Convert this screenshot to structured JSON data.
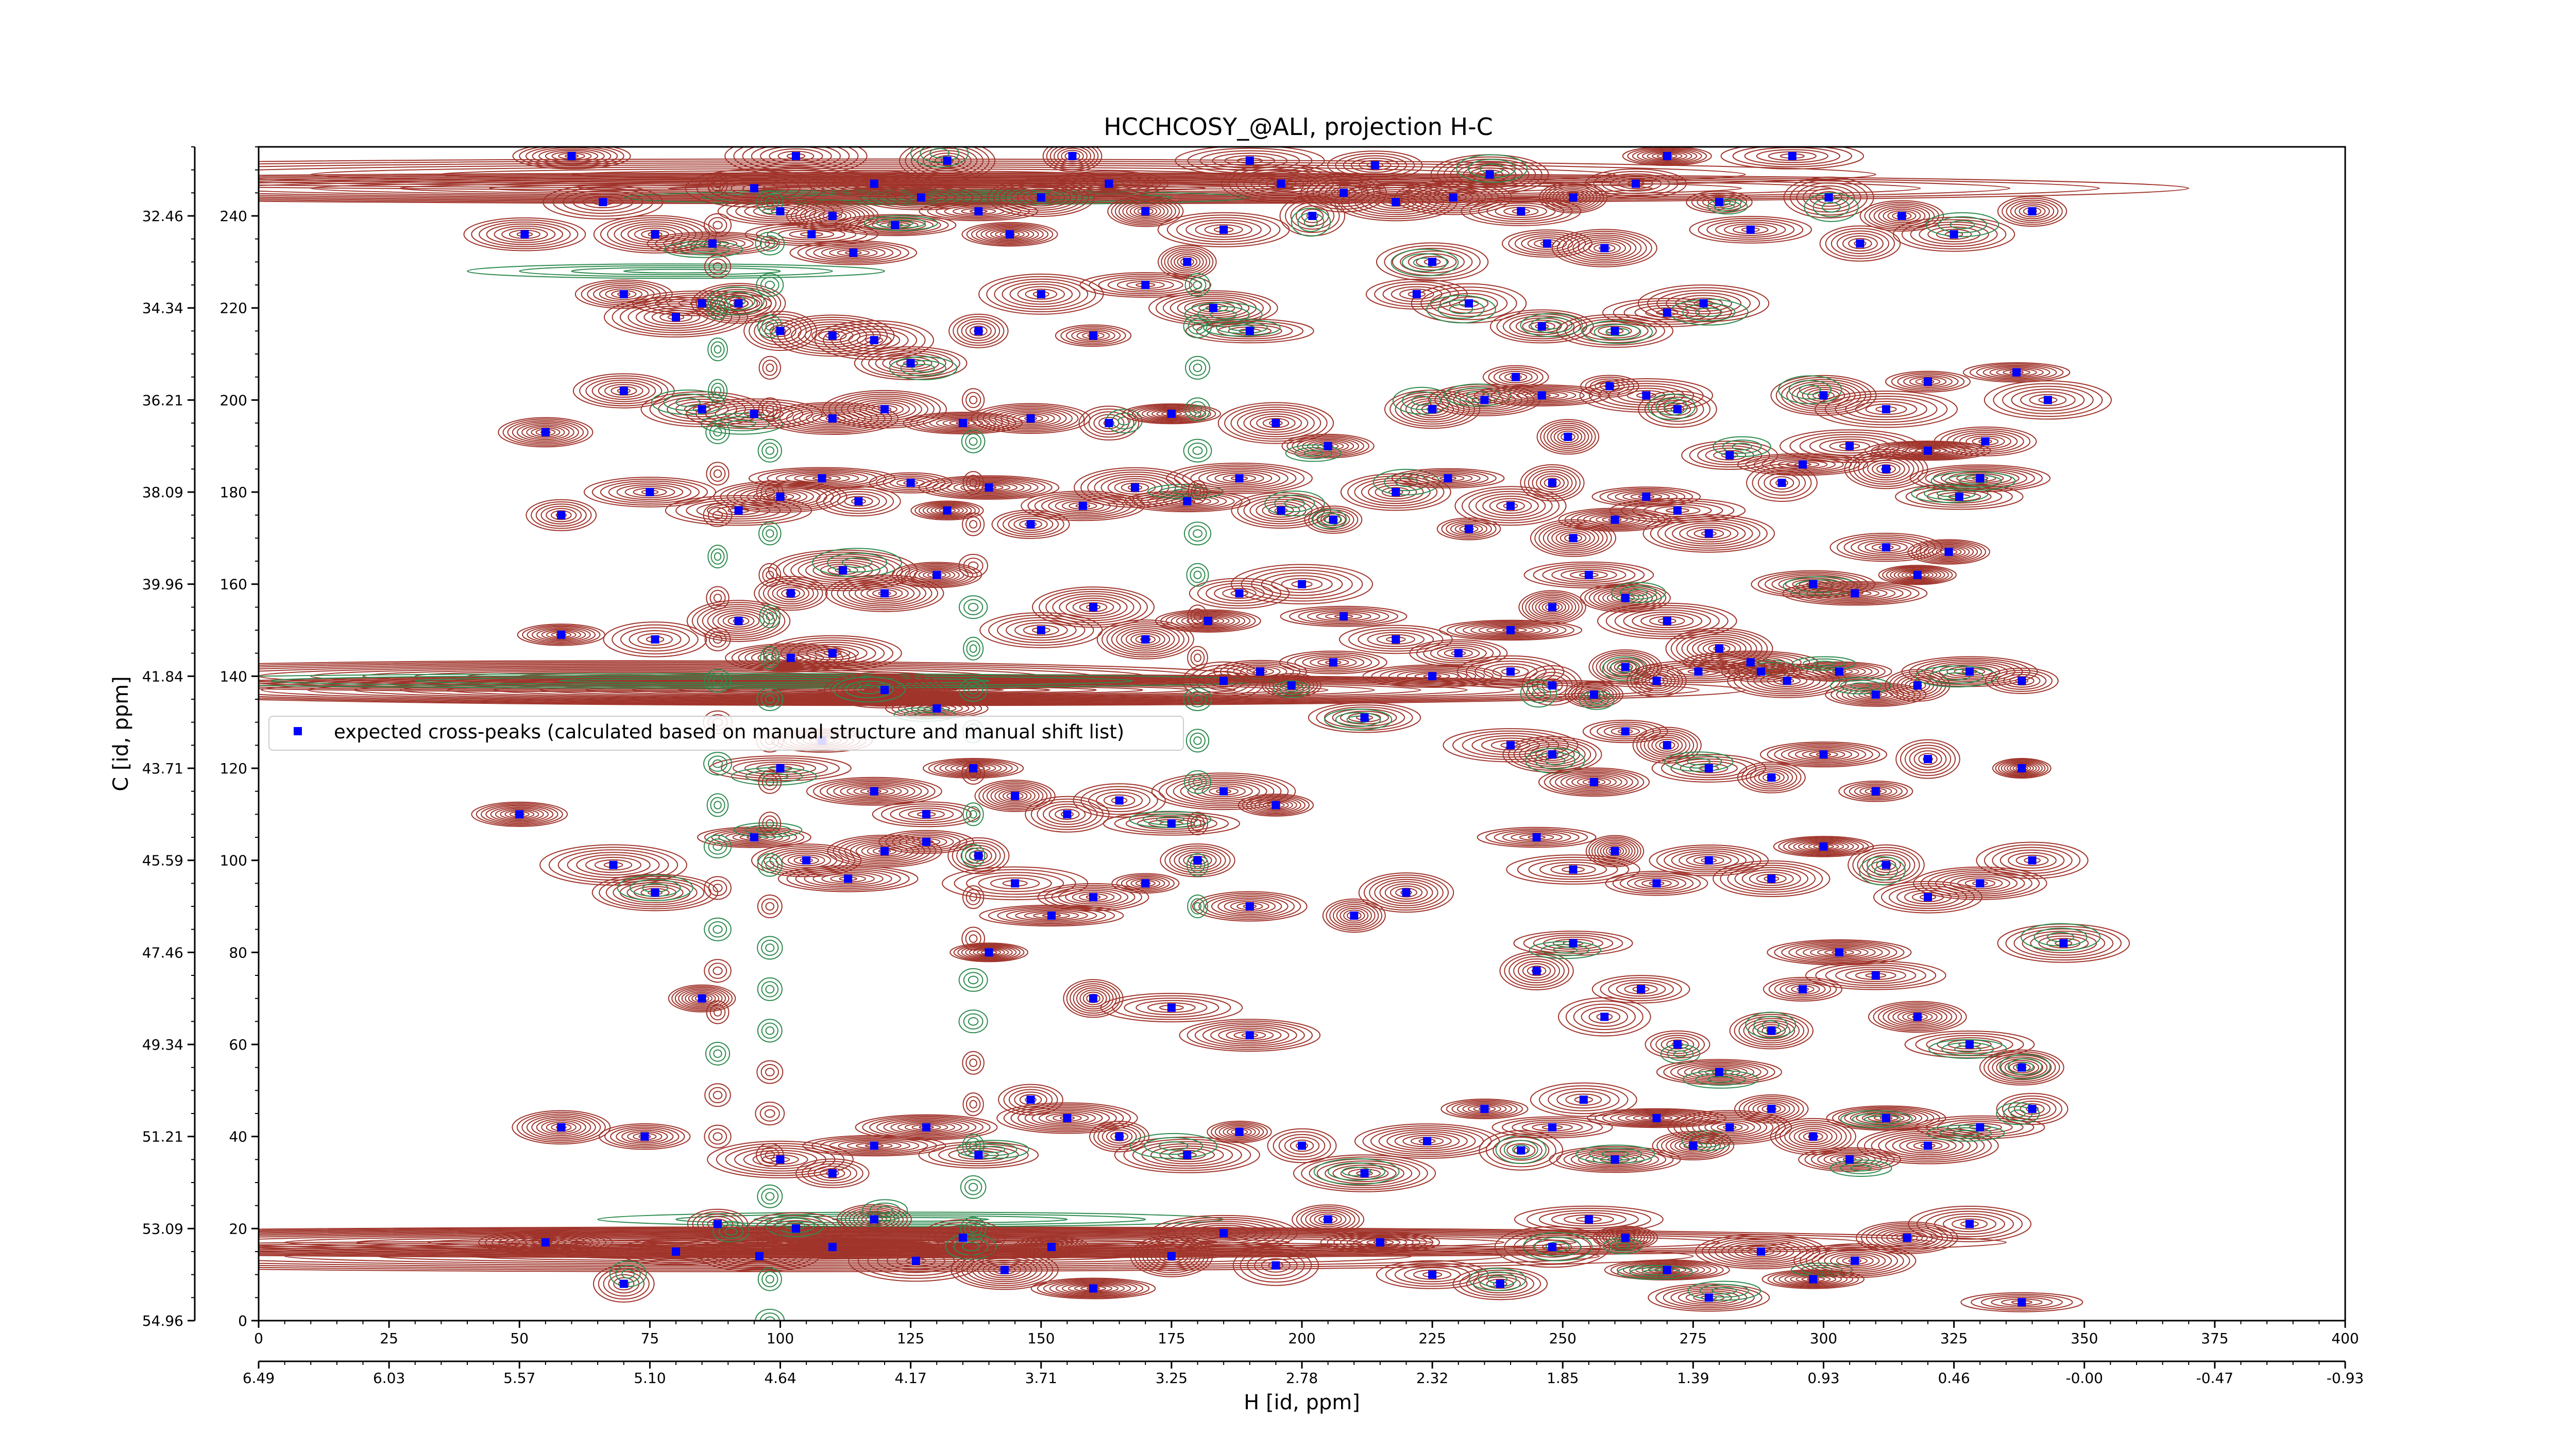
{
  "chart_data": {
    "type": "scatter",
    "title": "HCCHCOSY_@ALI, projection H-C",
    "xlabel_primary": "",
    "xlabel_secondary": "H [id, ppm]",
    "ylabel_secondary": "",
    "ylabel_primary": "C [id, ppm]",
    "xlim": [
      0,
      400
    ],
    "ylim": [
      0,
      255
    ],
    "x_ticks": [
      0,
      25,
      50,
      75,
      100,
      125,
      150,
      175,
      200,
      225,
      250,
      275,
      300,
      325,
      350,
      375,
      400
    ],
    "x_ticks_ppm": [
      "6.49",
      "6.03",
      "5.57",
      "5.10",
      "4.64",
      "4.17",
      "3.71",
      "3.25",
      "2.78",
      "2.32",
      "1.85",
      "1.39",
      "0.93",
      "0.46",
      "-0.00",
      "-0.47",
      "-0.93"
    ],
    "y_ticks": [
      0,
      20,
      40,
      60,
      80,
      100,
      120,
      140,
      160,
      180,
      200,
      220,
      240
    ],
    "y_ticks_ppm": [
      "54.96",
      "53.09",
      "51.21",
      "49.34",
      "47.46",
      "45.59",
      "43.71",
      "41.84",
      "39.96",
      "38.09",
      "36.21",
      "34.34",
      "32.46"
    ],
    "grid": false,
    "legend": {
      "position": "center-left",
      "entries": [
        "expected cross-peaks (calculated based on manual structure and manual shift list)"
      ]
    },
    "colors": {
      "positive_contour": "#a0342b",
      "negative_contour": "#2e8b4f",
      "peak_marker": "#0000ff"
    },
    "series": [
      {
        "name": "expected cross-peaks (calculated based on manual structure and manual shift list)",
        "marker": "square",
        "points": [
          [
            60,
            253
          ],
          [
            66,
            243
          ],
          [
            76,
            236
          ],
          [
            87,
            234
          ],
          [
            95,
            246
          ],
          [
            100,
            241
          ],
          [
            103,
            253
          ],
          [
            106,
            236
          ],
          [
            110,
            240
          ],
          [
            114,
            232
          ],
          [
            118,
            247
          ],
          [
            122,
            238
          ],
          [
            127,
            244
          ],
          [
            132,
            252
          ],
          [
            138,
            241
          ],
          [
            144,
            236
          ],
          [
            150,
            244
          ],
          [
            156,
            253
          ],
          [
            163,
            247
          ],
          [
            170,
            241
          ],
          [
            178,
            230
          ],
          [
            185,
            237
          ],
          [
            190,
            252
          ],
          [
            196,
            247
          ],
          [
            202,
            240
          ],
          [
            208,
            245
          ],
          [
            214,
            251
          ],
          [
            218,
            243
          ],
          [
            225,
            230
          ],
          [
            229,
            244
          ],
          [
            236,
            249
          ],
          [
            242,
            241
          ],
          [
            247,
            234
          ],
          [
            252,
            244
          ],
          [
            258,
            233
          ],
          [
            264,
            247
          ],
          [
            270,
            253
          ],
          [
            280,
            243
          ],
          [
            286,
            237
          ],
          [
            294,
            253
          ],
          [
            301,
            244
          ],
          [
            307,
            234
          ],
          [
            315,
            240
          ],
          [
            325,
            236
          ],
          [
            340,
            241
          ],
          [
            51,
            236
          ],
          [
            70,
            223
          ],
          [
            80,
            218
          ],
          [
            85,
            221
          ],
          [
            92,
            221
          ],
          [
            100,
            215
          ],
          [
            110,
            214
          ],
          [
            118,
            213
          ],
          [
            125,
            208
          ],
          [
            138,
            215
          ],
          [
            150,
            223
          ],
          [
            160,
            214
          ],
          [
            170,
            225
          ],
          [
            183,
            220
          ],
          [
            190,
            215
          ],
          [
            222,
            223
          ],
          [
            232,
            221
          ],
          [
            246,
            216
          ],
          [
            260,
            215
          ],
          [
            270,
            219
          ],
          [
            277,
            221
          ],
          [
            55,
            193
          ],
          [
            70,
            202
          ],
          [
            85,
            198
          ],
          [
            95,
            197
          ],
          [
            110,
            196
          ],
          [
            120,
            198
          ],
          [
            135,
            195
          ],
          [
            148,
            196
          ],
          [
            163,
            195
          ],
          [
            175,
            197
          ],
          [
            195,
            195
          ],
          [
            205,
            190
          ],
          [
            225,
            198
          ],
          [
            235,
            200
          ],
          [
            241,
            205
          ],
          [
            246,
            201
          ],
          [
            251,
            192
          ],
          [
            259,
            203
          ],
          [
            266,
            201
          ],
          [
            272,
            198
          ],
          [
            282,
            188
          ],
          [
            300,
            201
          ],
          [
            312,
            198
          ],
          [
            320,
            204
          ],
          [
            331,
            191
          ],
          [
            337,
            206
          ],
          [
            343,
            200
          ],
          [
            58,
            175
          ],
          [
            75,
            180
          ],
          [
            92,
            176
          ],
          [
            100,
            179
          ],
          [
            108,
            183
          ],
          [
            115,
            178
          ],
          [
            125,
            182
          ],
          [
            132,
            176
          ],
          [
            140,
            181
          ],
          [
            148,
            173
          ],
          [
            158,
            177
          ],
          [
            168,
            181
          ],
          [
            178,
            178
          ],
          [
            188,
            183
          ],
          [
            196,
            176
          ],
          [
            206,
            174
          ],
          [
            218,
            180
          ],
          [
            228,
            183
          ],
          [
            232,
            172
          ],
          [
            240,
            177
          ],
          [
            248,
            182
          ],
          [
            252,
            170
          ],
          [
            260,
            174
          ],
          [
            266,
            179
          ],
          [
            272,
            176
          ],
          [
            278,
            171
          ],
          [
            292,
            182
          ],
          [
            296,
            186
          ],
          [
            305,
            190
          ],
          [
            312,
            185
          ],
          [
            320,
            189
          ],
          [
            326,
            179
          ],
          [
            330,
            183
          ],
          [
            312,
            168
          ],
          [
            324,
            167
          ],
          [
            58,
            149
          ],
          [
            76,
            148
          ],
          [
            92,
            152
          ],
          [
            102,
            158
          ],
          [
            112,
            163
          ],
          [
            120,
            158
          ],
          [
            130,
            162
          ],
          [
            150,
            150
          ],
          [
            160,
            155
          ],
          [
            170,
            148
          ],
          [
            182,
            152
          ],
          [
            188,
            158
          ],
          [
            200,
            160
          ],
          [
            208,
            153
          ],
          [
            218,
            148
          ],
          [
            230,
            145
          ],
          [
            240,
            150
          ],
          [
            248,
            155
          ],
          [
            255,
            162
          ],
          [
            262,
            157
          ],
          [
            270,
            152
          ],
          [
            280,
            146
          ],
          [
            288,
            141
          ],
          [
            298,
            160
          ],
          [
            306,
            158
          ],
          [
            318,
            162
          ],
          [
            102,
            144
          ],
          [
            110,
            145
          ],
          [
            120,
            137
          ],
          [
            130,
            133
          ],
          [
            185,
            139
          ],
          [
            192,
            141
          ],
          [
            198,
            138
          ],
          [
            206,
            143
          ],
          [
            212,
            131
          ],
          [
            225,
            140
          ],
          [
            240,
            141
          ],
          [
            248,
            138
          ],
          [
            256,
            136
          ],
          [
            262,
            142
          ],
          [
            268,
            139
          ],
          [
            276,
            141
          ],
          [
            286,
            143
          ],
          [
            293,
            139
          ],
          [
            303,
            141
          ],
          [
            310,
            136
          ],
          [
            318,
            138
          ],
          [
            328,
            141
          ],
          [
            338,
            139
          ],
          [
            100,
            120
          ],
          [
            108,
            126
          ],
          [
            118,
            115
          ],
          [
            128,
            110
          ],
          [
            137,
            120
          ],
          [
            145,
            114
          ],
          [
            155,
            110
          ],
          [
            165,
            113
          ],
          [
            175,
            108
          ],
          [
            185,
            115
          ],
          [
            195,
            112
          ],
          [
            240,
            125
          ],
          [
            248,
            123
          ],
          [
            256,
            117
          ],
          [
            262,
            128
          ],
          [
            270,
            125
          ],
          [
            278,
            120
          ],
          [
            290,
            118
          ],
          [
            300,
            123
          ],
          [
            310,
            115
          ],
          [
            320,
            122
          ],
          [
            338,
            120
          ],
          [
            50,
            110
          ],
          [
            68,
            99
          ],
          [
            76,
            93
          ],
          [
            95,
            105
          ],
          [
            105,
            100
          ],
          [
            113,
            96
          ],
          [
            120,
            102
          ],
          [
            128,
            104
          ],
          [
            138,
            101
          ],
          [
            145,
            95
          ],
          [
            152,
            88
          ],
          [
            160,
            92
          ],
          [
            170,
            95
          ],
          [
            180,
            100
          ],
          [
            190,
            90
          ],
          [
            210,
            88
          ],
          [
            220,
            93
          ],
          [
            245,
            105
          ],
          [
            252,
            98
          ],
          [
            260,
            102
          ],
          [
            268,
            95
          ],
          [
            278,
            100
          ],
          [
            290,
            96
          ],
          [
            300,
            103
          ],
          [
            312,
            99
          ],
          [
            320,
            92
          ],
          [
            330,
            95
          ],
          [
            340,
            100
          ],
          [
            85,
            70
          ],
          [
            140,
            80
          ],
          [
            160,
            70
          ],
          [
            175,
            68
          ],
          [
            190,
            62
          ],
          [
            245,
            76
          ],
          [
            252,
            82
          ],
          [
            258,
            66
          ],
          [
            265,
            72
          ],
          [
            272,
            60
          ],
          [
            280,
            54
          ],
          [
            290,
            63
          ],
          [
            296,
            72
          ],
          [
            303,
            80
          ],
          [
            310,
            75
          ],
          [
            318,
            66
          ],
          [
            328,
            60
          ],
          [
            338,
            55
          ],
          [
            346,
            82
          ],
          [
            58,
            42
          ],
          [
            74,
            40
          ],
          [
            100,
            35
          ],
          [
            110,
            32
          ],
          [
            118,
            38
          ],
          [
            128,
            42
          ],
          [
            138,
            36
          ],
          [
            148,
            48
          ],
          [
            155,
            44
          ],
          [
            165,
            40
          ],
          [
            178,
            36
          ],
          [
            188,
            41
          ],
          [
            200,
            38
          ],
          [
            212,
            32
          ],
          [
            224,
            39
          ],
          [
            235,
            46
          ],
          [
            242,
            37
          ],
          [
            248,
            42
          ],
          [
            254,
            48
          ],
          [
            260,
            35
          ],
          [
            268,
            44
          ],
          [
            275,
            38
          ],
          [
            282,
            42
          ],
          [
            290,
            46
          ],
          [
            298,
            40
          ],
          [
            305,
            35
          ],
          [
            312,
            44
          ],
          [
            320,
            38
          ],
          [
            330,
            42
          ],
          [
            340,
            46
          ],
          [
            55,
            17
          ],
          [
            70,
            8
          ],
          [
            80,
            15
          ],
          [
            88,
            21
          ],
          [
            96,
            14
          ],
          [
            103,
            20
          ],
          [
            110,
            16
          ],
          [
            118,
            22
          ],
          [
            126,
            13
          ],
          [
            135,
            18
          ],
          [
            143,
            11
          ],
          [
            152,
            16
          ],
          [
            160,
            7
          ],
          [
            175,
            14
          ],
          [
            185,
            19
          ],
          [
            195,
            12
          ],
          [
            205,
            22
          ],
          [
            215,
            17
          ],
          [
            225,
            10
          ],
          [
            238,
            8
          ],
          [
            248,
            16
          ],
          [
            255,
            22
          ],
          [
            262,
            18
          ],
          [
            270,
            11
          ],
          [
            278,
            5
          ],
          [
            288,
            15
          ],
          [
            298,
            9
          ],
          [
            306,
            13
          ],
          [
            316,
            18
          ],
          [
            328,
            21
          ],
          [
            338,
            4
          ]
        ]
      }
    ]
  }
}
